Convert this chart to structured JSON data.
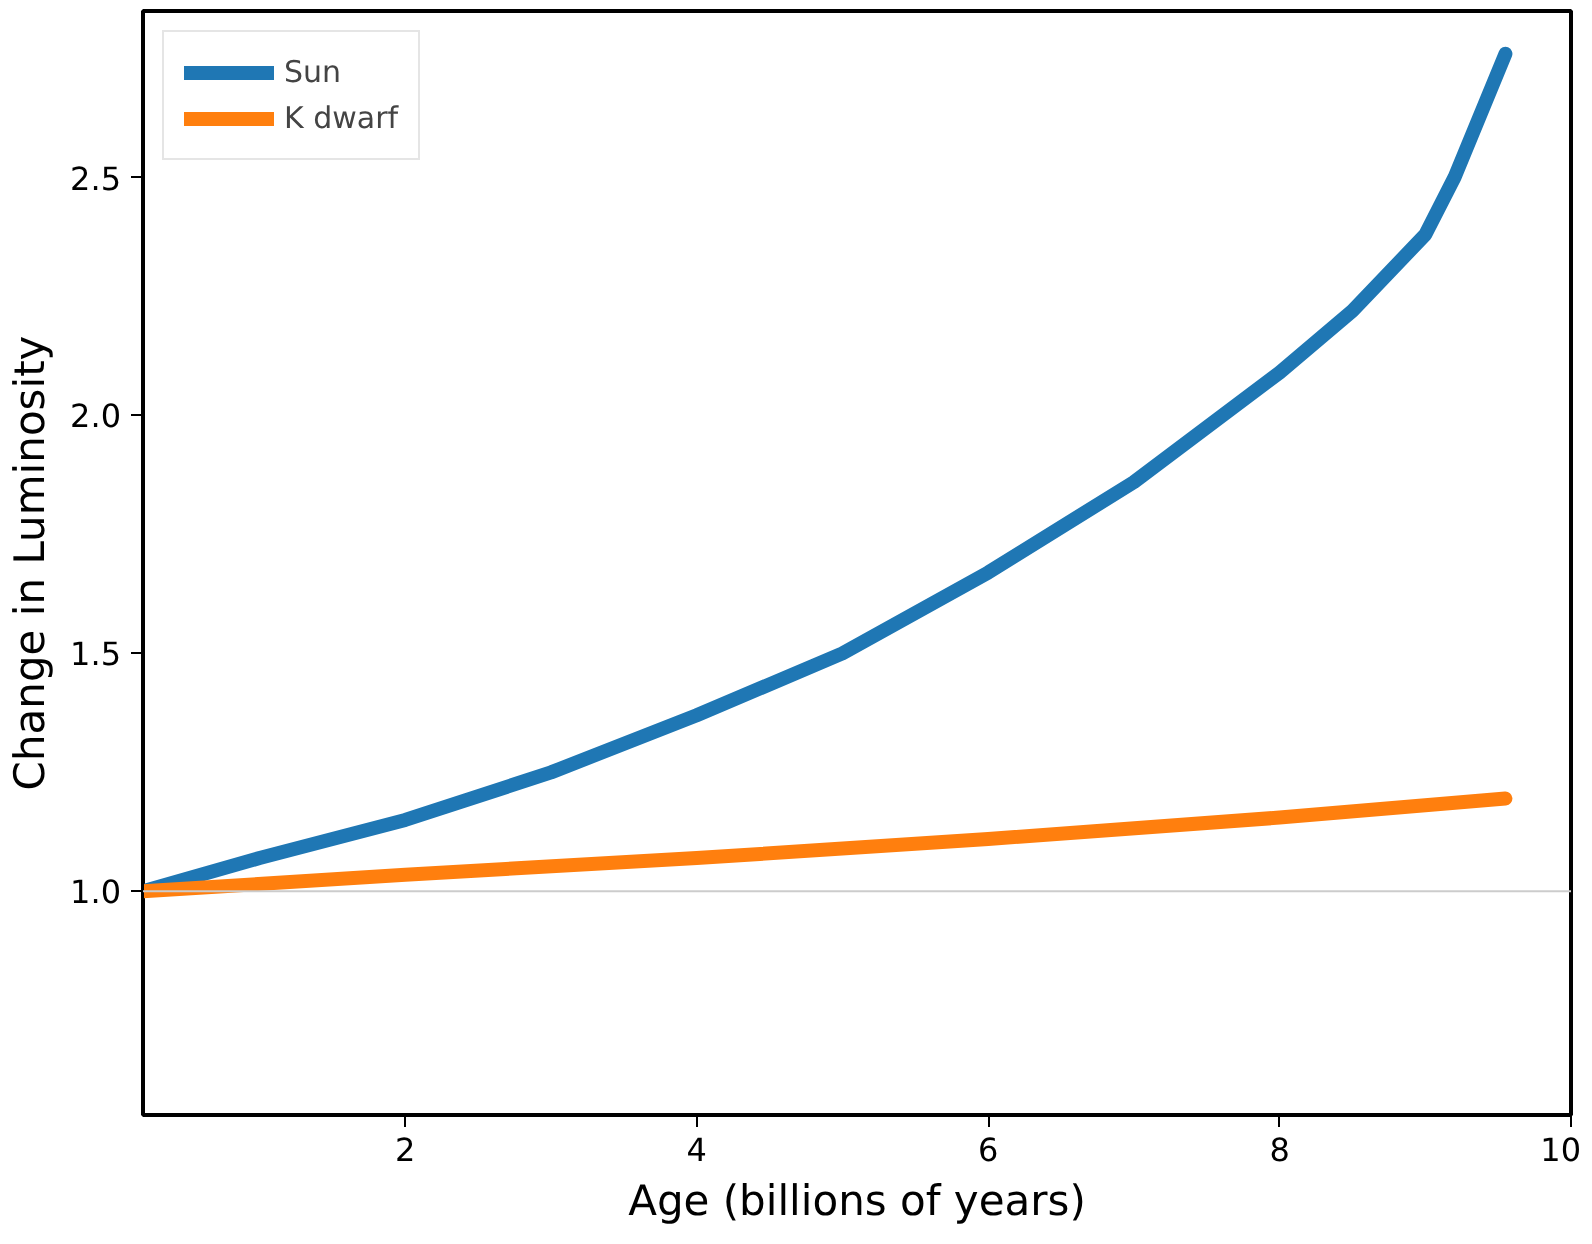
{
  "chart_data": {
    "type": "line",
    "xlabel": "Age (billions of years)",
    "ylabel": "Change in Luminosity",
    "series": [
      {
        "name": "Sun",
        "color": "#1f77b4",
        "x": [
          0.2,
          1,
          2,
          3,
          4,
          5,
          6,
          7,
          8,
          8.5,
          9,
          9.2,
          9.55
        ],
        "values": [
          1.0,
          1.07,
          1.15,
          1.25,
          1.37,
          1.5,
          1.67,
          1.86,
          2.09,
          2.22,
          2.38,
          2.5,
          2.76
        ]
      },
      {
        "name": "K dwarf",
        "color": "#ff7f0e",
        "x": [
          0.2,
          2,
          4,
          6,
          8,
          9.55
        ],
        "values": [
          1.0,
          1.035,
          1.07,
          1.11,
          1.155,
          1.195
        ]
      }
    ],
    "xlim": [
      0.2,
      10
    ],
    "ylim": [
      0.53,
      2.85
    ],
    "xticks": [
      2,
      4,
      6,
      8,
      10
    ],
    "yticks": [
      {
        "value": 1,
        "label": "1.0"
      },
      1.5,
      {
        "value": 2,
        "label": "2.0"
      },
      2.5
    ],
    "ref_lines": [
      {
        "axis": "y",
        "value": 1.0,
        "label": null,
        "color": "#cccccc"
      }
    ],
    "grid": false,
    "legend": "top left",
    "marker": "none",
    "line_style": "solid"
  }
}
